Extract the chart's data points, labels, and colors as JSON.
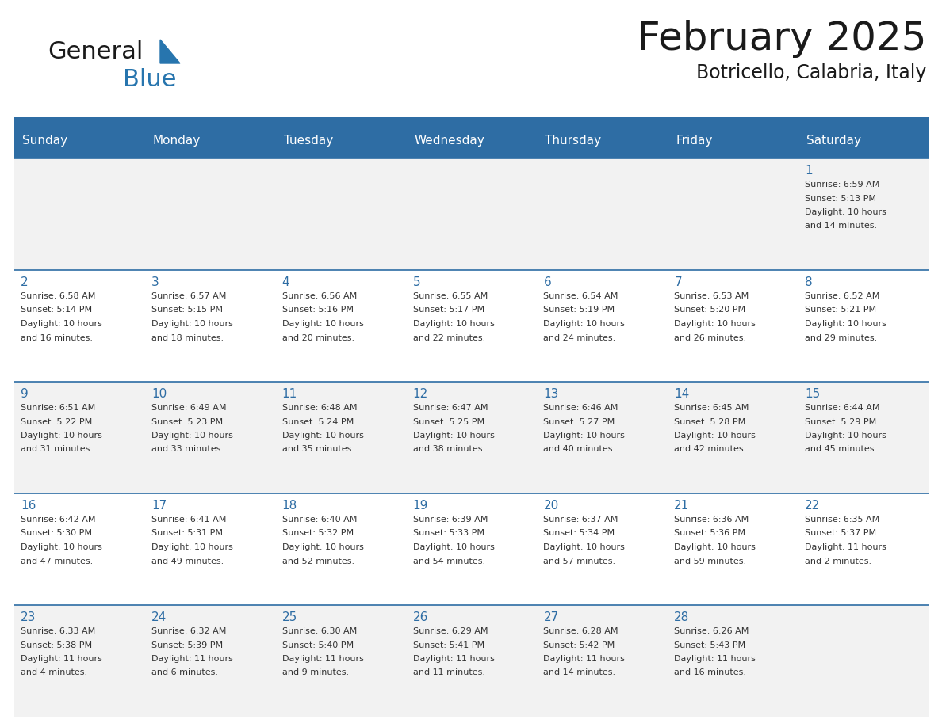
{
  "title": "February 2025",
  "subtitle": "Botricello, Calabria, Italy",
  "header_bg": "#2E6DA4",
  "header_text_color": "#FFFFFF",
  "cell_bg_odd": "#F2F2F2",
  "cell_bg_even": "#FFFFFF",
  "border_color": "#2E6DA4",
  "text_color": "#333333",
  "day_num_color": "#2E6DA4",
  "logo_general_color": "#1a1a1a",
  "logo_blue_color": "#2775AE",
  "day_headers": [
    "Sunday",
    "Monday",
    "Tuesday",
    "Wednesday",
    "Thursday",
    "Friday",
    "Saturday"
  ],
  "title_fontsize": 36,
  "subtitle_fontsize": 17,
  "header_fontsize": 11,
  "day_num_fontsize": 11,
  "cell_text_fontsize": 8,
  "days": [
    {
      "day": 1,
      "col": 6,
      "row": 0,
      "sunrise": "6:59 AM",
      "sunset": "5:13 PM",
      "daylight_hours": 10,
      "daylight_minutes": 14
    },
    {
      "day": 2,
      "col": 0,
      "row": 1,
      "sunrise": "6:58 AM",
      "sunset": "5:14 PM",
      "daylight_hours": 10,
      "daylight_minutes": 16
    },
    {
      "day": 3,
      "col": 1,
      "row": 1,
      "sunrise": "6:57 AM",
      "sunset": "5:15 PM",
      "daylight_hours": 10,
      "daylight_minutes": 18
    },
    {
      "day": 4,
      "col": 2,
      "row": 1,
      "sunrise": "6:56 AM",
      "sunset": "5:16 PM",
      "daylight_hours": 10,
      "daylight_minutes": 20
    },
    {
      "day": 5,
      "col": 3,
      "row": 1,
      "sunrise": "6:55 AM",
      "sunset": "5:17 PM",
      "daylight_hours": 10,
      "daylight_minutes": 22
    },
    {
      "day": 6,
      "col": 4,
      "row": 1,
      "sunrise": "6:54 AM",
      "sunset": "5:19 PM",
      "daylight_hours": 10,
      "daylight_minutes": 24
    },
    {
      "day": 7,
      "col": 5,
      "row": 1,
      "sunrise": "6:53 AM",
      "sunset": "5:20 PM",
      "daylight_hours": 10,
      "daylight_minutes": 26
    },
    {
      "day": 8,
      "col": 6,
      "row": 1,
      "sunrise": "6:52 AM",
      "sunset": "5:21 PM",
      "daylight_hours": 10,
      "daylight_minutes": 29
    },
    {
      "day": 9,
      "col": 0,
      "row": 2,
      "sunrise": "6:51 AM",
      "sunset": "5:22 PM",
      "daylight_hours": 10,
      "daylight_minutes": 31
    },
    {
      "day": 10,
      "col": 1,
      "row": 2,
      "sunrise": "6:49 AM",
      "sunset": "5:23 PM",
      "daylight_hours": 10,
      "daylight_minutes": 33
    },
    {
      "day": 11,
      "col": 2,
      "row": 2,
      "sunrise": "6:48 AM",
      "sunset": "5:24 PM",
      "daylight_hours": 10,
      "daylight_minutes": 35
    },
    {
      "day": 12,
      "col": 3,
      "row": 2,
      "sunrise": "6:47 AM",
      "sunset": "5:25 PM",
      "daylight_hours": 10,
      "daylight_minutes": 38
    },
    {
      "day": 13,
      "col": 4,
      "row": 2,
      "sunrise": "6:46 AM",
      "sunset": "5:27 PM",
      "daylight_hours": 10,
      "daylight_minutes": 40
    },
    {
      "day": 14,
      "col": 5,
      "row": 2,
      "sunrise": "6:45 AM",
      "sunset": "5:28 PM",
      "daylight_hours": 10,
      "daylight_minutes": 42
    },
    {
      "day": 15,
      "col": 6,
      "row": 2,
      "sunrise": "6:44 AM",
      "sunset": "5:29 PM",
      "daylight_hours": 10,
      "daylight_minutes": 45
    },
    {
      "day": 16,
      "col": 0,
      "row": 3,
      "sunrise": "6:42 AM",
      "sunset": "5:30 PM",
      "daylight_hours": 10,
      "daylight_minutes": 47
    },
    {
      "day": 17,
      "col": 1,
      "row": 3,
      "sunrise": "6:41 AM",
      "sunset": "5:31 PM",
      "daylight_hours": 10,
      "daylight_minutes": 49
    },
    {
      "day": 18,
      "col": 2,
      "row": 3,
      "sunrise": "6:40 AM",
      "sunset": "5:32 PM",
      "daylight_hours": 10,
      "daylight_minutes": 52
    },
    {
      "day": 19,
      "col": 3,
      "row": 3,
      "sunrise": "6:39 AM",
      "sunset": "5:33 PM",
      "daylight_hours": 10,
      "daylight_minutes": 54
    },
    {
      "day": 20,
      "col": 4,
      "row": 3,
      "sunrise": "6:37 AM",
      "sunset": "5:34 PM",
      "daylight_hours": 10,
      "daylight_minutes": 57
    },
    {
      "day": 21,
      "col": 5,
      "row": 3,
      "sunrise": "6:36 AM",
      "sunset": "5:36 PM",
      "daylight_hours": 10,
      "daylight_minutes": 59
    },
    {
      "day": 22,
      "col": 6,
      "row": 3,
      "sunrise": "6:35 AM",
      "sunset": "5:37 PM",
      "daylight_hours": 11,
      "daylight_minutes": 2
    },
    {
      "day": 23,
      "col": 0,
      "row": 4,
      "sunrise": "6:33 AM",
      "sunset": "5:38 PM",
      "daylight_hours": 11,
      "daylight_minutes": 4
    },
    {
      "day": 24,
      "col": 1,
      "row": 4,
      "sunrise": "6:32 AM",
      "sunset": "5:39 PM",
      "daylight_hours": 11,
      "daylight_minutes": 6
    },
    {
      "day": 25,
      "col": 2,
      "row": 4,
      "sunrise": "6:30 AM",
      "sunset": "5:40 PM",
      "daylight_hours": 11,
      "daylight_minutes": 9
    },
    {
      "day": 26,
      "col": 3,
      "row": 4,
      "sunrise": "6:29 AM",
      "sunset": "5:41 PM",
      "daylight_hours": 11,
      "daylight_minutes": 11
    },
    {
      "day": 27,
      "col": 4,
      "row": 4,
      "sunrise": "6:28 AM",
      "sunset": "5:42 PM",
      "daylight_hours": 11,
      "daylight_minutes": 14
    },
    {
      "day": 28,
      "col": 5,
      "row": 4,
      "sunrise": "6:26 AM",
      "sunset": "5:43 PM",
      "daylight_hours": 11,
      "daylight_minutes": 16
    }
  ]
}
